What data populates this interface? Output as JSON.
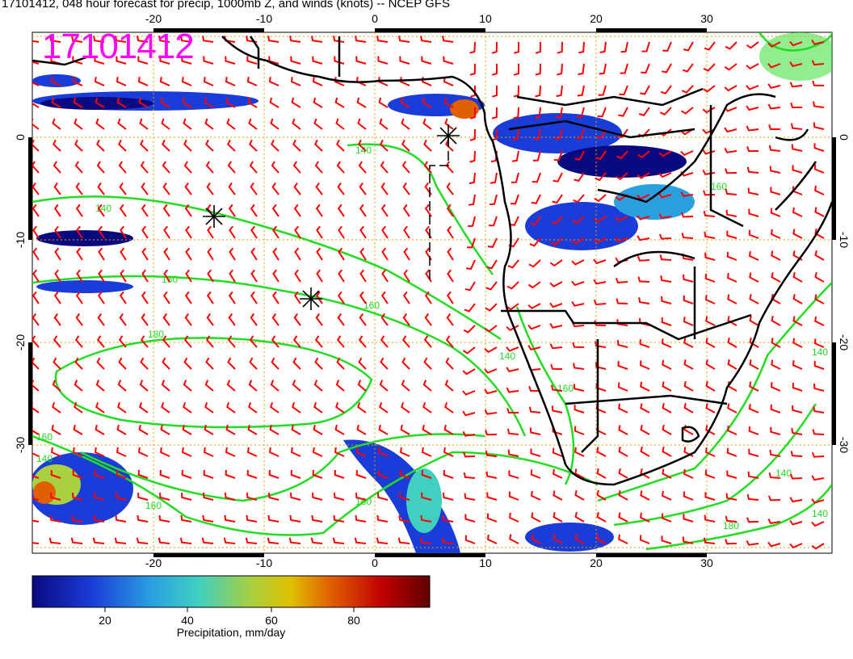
{
  "title": "17101412, 048 hour forecast for precip, 1000mb Z, and winds (knots) -- NCEP GFS",
  "date_stamp": "17101412",
  "map": {
    "lon_ticks": [
      "-20",
      "-10",
      "0",
      "10",
      "20",
      "30"
    ],
    "lat_ticks": [
      "0",
      "-10",
      "-20",
      "-30"
    ],
    "contour_labels": [
      "140",
      "140",
      "160",
      "160",
      "180",
      "160",
      "140",
      "160",
      "140",
      "160",
      "180",
      "140",
      "140",
      "160",
      "140",
      "160"
    ],
    "colors": {
      "contour": "#22dd22",
      "wind_barb": "#ff0000",
      "coastline": "#000000",
      "grid": "#e0a000",
      "date_stamp": "#ff00ff"
    }
  },
  "colorbar": {
    "tick_labels": [
      "20",
      "40",
      "60",
      "80"
    ],
    "label": "Precipitation, mm/day",
    "colors": [
      "#0a0a80",
      "#1a3cd8",
      "#2aa0e0",
      "#40d0c0",
      "#a8d040",
      "#e0c000",
      "#e06000",
      "#c00000",
      "#600000"
    ]
  }
}
